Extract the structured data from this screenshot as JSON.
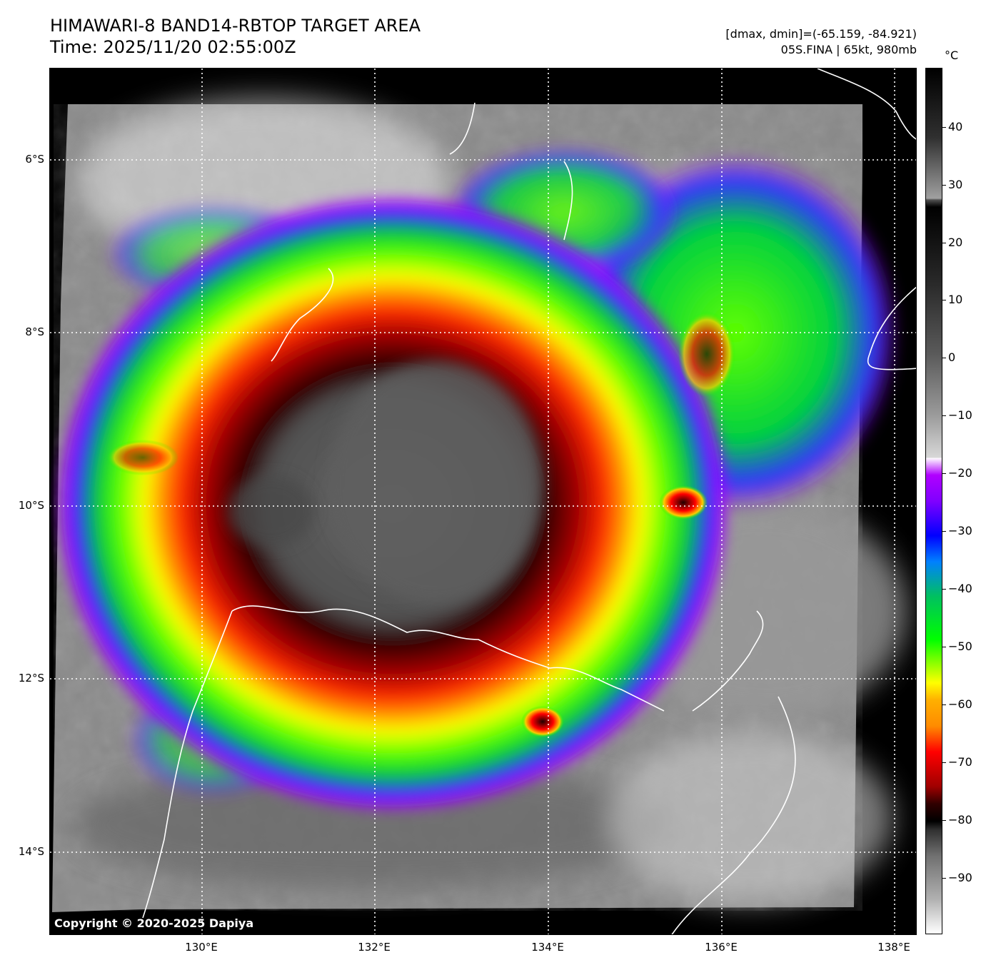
{
  "title": {
    "line1": "HIMAWARI-8 BAND14-RBTOP TARGET AREA",
    "line2": "Time: 2025/11/20 02:55:00Z"
  },
  "info": {
    "range": "[dmax, dmin]=(-65.159, -84.921)",
    "storm": "05S.FINA | 65kt, 980mb"
  },
  "map": {
    "lat_labels": [
      "6°S",
      "8°S",
      "10°S",
      "12°S",
      "14°S"
    ],
    "lon_labels": [
      "130°E",
      "132°E",
      "134°E",
      "136°E",
      "138°E"
    ],
    "copyright": "Copyright © 2020-2025 Dapiya"
  },
  "colorbar": {
    "unit": "°C",
    "labels": [
      "40",
      "30",
      "20",
      "10",
      "0",
      "−10",
      "−20",
      "−30",
      "−40",
      "−50",
      "−60",
      "−70",
      "−80",
      "−90"
    ],
    "colors": {
      "warm": "#000000",
      "cold_gray": "#ffffff",
      "purple": "#b000ff",
      "blue": "#0000ff",
      "green": "#00ff00",
      "yellow": "#ffff00",
      "orange": "#ff8c00",
      "red": "#ff0000",
      "dark_red": "#300000"
    }
  }
}
